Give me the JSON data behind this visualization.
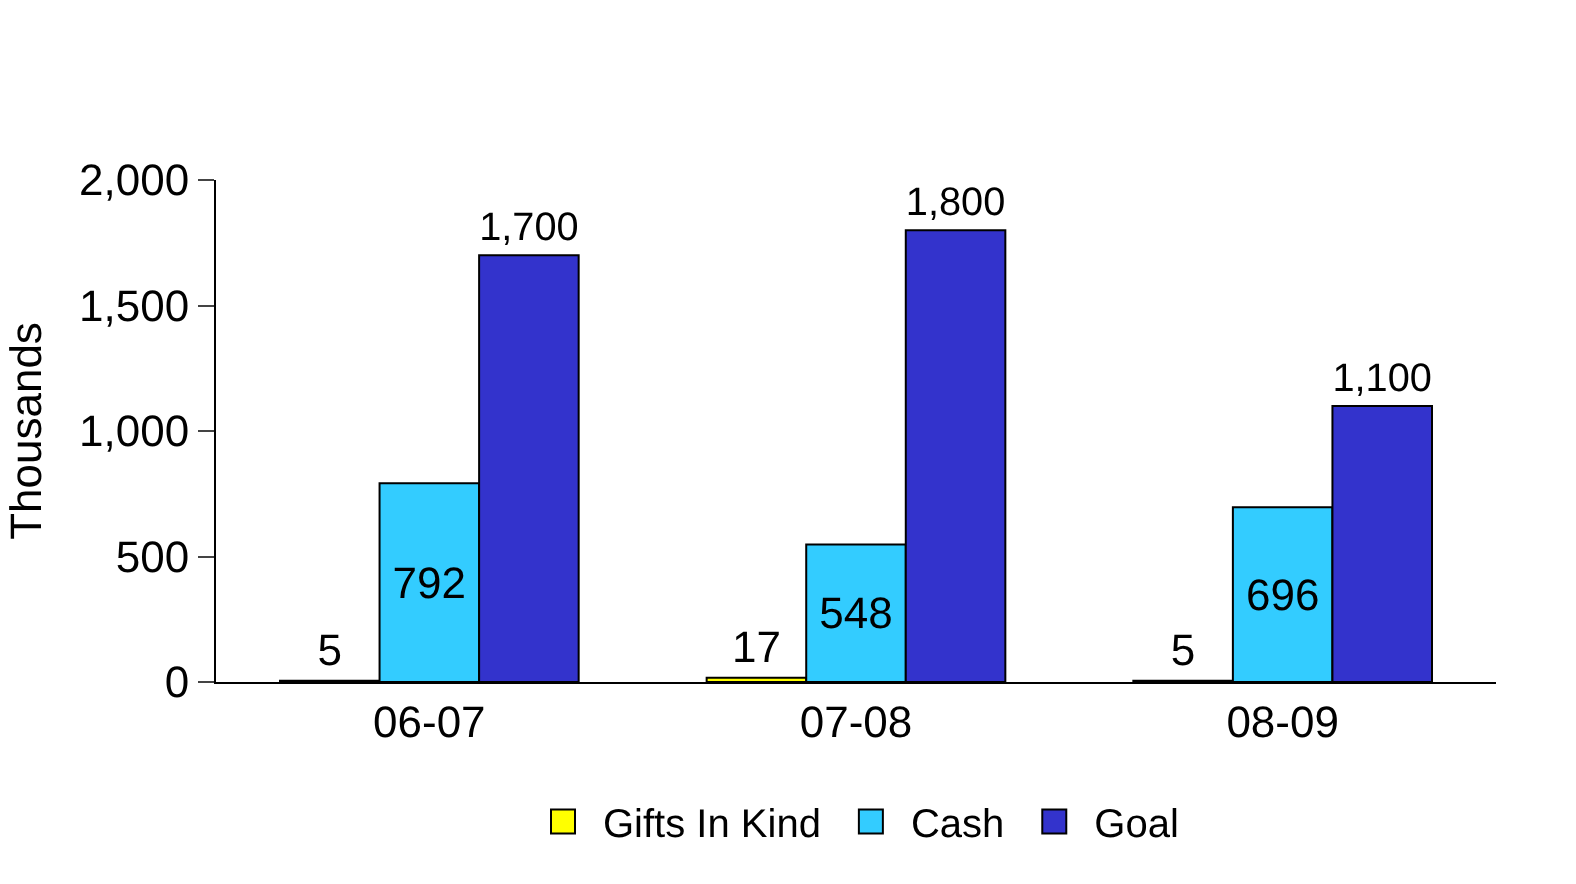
{
  "chart_data": {
    "type": "bar",
    "ylabel": "Thousands",
    "categories": [
      "06-07",
      "07-08",
      "08-09"
    ],
    "series": [
      {
        "name": "Gifts In Kind",
        "color": "#ffff00",
        "values": [
          5,
          17,
          5
        ],
        "value_labels": [
          "5",
          "17",
          "5"
        ]
      },
      {
        "name": "Cash",
        "color": "#33ccff",
        "values": [
          792,
          548,
          696
        ],
        "value_labels": [
          "792",
          "548",
          "696"
        ]
      },
      {
        "name": "Goal",
        "color": "#3333cc",
        "values": [
          1700,
          1800,
          1100
        ],
        "value_labels": [
          "1,700",
          "1,800",
          "1,100"
        ]
      }
    ],
    "ylim": [
      0,
      2000
    ],
    "yticks": [
      {
        "value": 0,
        "label": "0"
      },
      {
        "value": 500,
        "label": "500"
      },
      {
        "value": 1000,
        "label": "1,000"
      },
      {
        "value": 1500,
        "label": "1,500"
      },
      {
        "value": 2000,
        "label": "2,000"
      }
    ],
    "grid": false,
    "legend": "bottom"
  }
}
